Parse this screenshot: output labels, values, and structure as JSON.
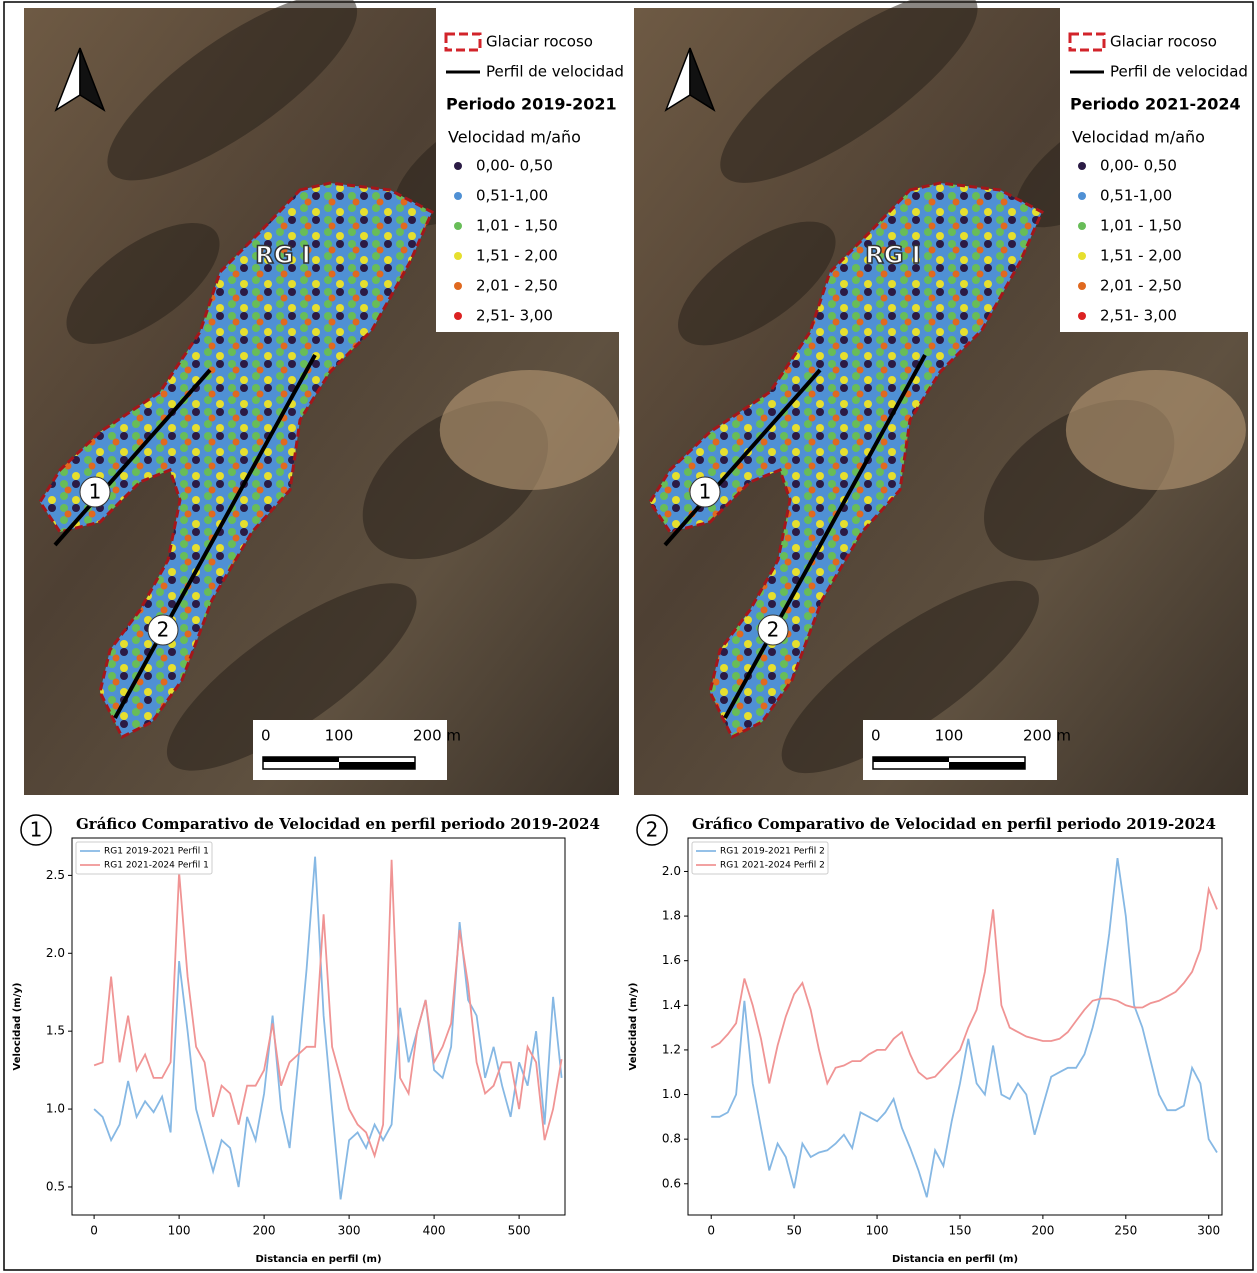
{
  "maps": [
    {
      "legend": {
        "glacier": "Glaciar rocoso",
        "profile": "Perfil de velocidad",
        "period": "Periodo 2019-2021",
        "velocity_title": "Velocidad m/año",
        "classes": [
          {
            "label": "0,00- 0,50",
            "color": "#2b1b45"
          },
          {
            "label": "0,51-1,00",
            "color": "#4f90d4"
          },
          {
            "label": "1,01 - 1,50",
            "color": "#68bd58"
          },
          {
            "label": "1,51 - 2,00",
            "color": "#e6df2e"
          },
          {
            "label": "2,01 - 2,50",
            "color": "#e0691f"
          },
          {
            "label": "2,51- 3,00",
            "color": "#dc2222"
          }
        ]
      },
      "glacier_label": "RG I",
      "profile_labels": [
        "1",
        "2"
      ],
      "scale": [
        "0",
        "100",
        "200 m"
      ]
    },
    {
      "legend": {
        "glacier": "Glaciar rocoso",
        "profile": "Perfil de velocidad",
        "period": "Periodo 2021-2024",
        "velocity_title": "Velocidad m/año",
        "classes": [
          {
            "label": "0,00- 0,50",
            "color": "#2b1b45"
          },
          {
            "label": "0,51-1,00",
            "color": "#4f90d4"
          },
          {
            "label": "1,01 - 1,50",
            "color": "#68bd58"
          },
          {
            "label": "1,51 - 2,00",
            "color": "#e6df2e"
          },
          {
            "label": "2,01 - 2,50",
            "color": "#e0691f"
          },
          {
            "label": "2,51- 3,00",
            "color": "#dc2222"
          }
        ]
      },
      "glacier_label": "RG I",
      "profile_labels": [
        "1",
        "2"
      ],
      "scale": [
        "0",
        "100",
        "200 m"
      ]
    }
  ],
  "chart_data": [
    {
      "type": "line",
      "label": "1",
      "title": "Gráfico Comparativo de Velocidad en perfil periodo 2019-2024",
      "x_label": "Distancia en perfil (m)",
      "y_label": "Velocidad (m/y)",
      "legend": "upper left",
      "grid": false,
      "x": [
        0,
        10,
        20,
        30,
        40,
        50,
        60,
        70,
        80,
        90,
        100,
        110,
        120,
        130,
        140,
        150,
        160,
        170,
        180,
        190,
        200,
        210,
        220,
        230,
        240,
        250,
        260,
        270,
        280,
        290,
        300,
        310,
        320,
        330,
        340,
        350,
        360,
        370,
        380,
        390,
        400,
        410,
        420,
        430,
        440,
        450,
        460,
        470,
        480,
        490,
        500,
        510,
        520,
        530,
        540,
        550
      ],
      "series": [
        {
          "name": "RG1 2019-2021 Perfil 1",
          "color": "#86b8e4",
          "values": [
            1.0,
            0.95,
            0.8,
            0.9,
            1.18,
            0.95,
            1.05,
            0.98,
            1.08,
            0.85,
            1.95,
            1.5,
            1.0,
            0.8,
            0.6,
            0.8,
            0.75,
            0.5,
            0.95,
            0.8,
            1.1,
            1.6,
            1.0,
            0.75,
            1.3,
            1.9,
            2.62,
            1.6,
            1.0,
            0.42,
            0.8,
            0.85,
            0.75,
            0.9,
            0.8,
            0.9,
            1.65,
            1.3,
            1.5,
            1.7,
            1.25,
            1.2,
            1.4,
            2.2,
            1.7,
            1.6,
            1.2,
            1.4,
            1.15,
            0.95,
            1.3,
            1.15,
            1.5,
            0.9,
            1.72,
            1.2
          ]
        },
        {
          "name": "RG1 2021-2024 Perfil 1",
          "color": "#f09494",
          "values": [
            1.28,
            1.3,
            1.85,
            1.3,
            1.6,
            1.25,
            1.35,
            1.2,
            1.2,
            1.3,
            2.52,
            1.85,
            1.4,
            1.3,
            0.95,
            1.15,
            1.1,
            0.9,
            1.15,
            1.15,
            1.25,
            1.55,
            1.15,
            1.3,
            1.35,
            1.4,
            1.4,
            2.25,
            1.4,
            1.2,
            1.0,
            0.9,
            0.85,
            0.7,
            0.9,
            2.6,
            1.2,
            1.1,
            1.5,
            1.7,
            1.3,
            1.4,
            1.55,
            2.15,
            1.8,
            1.3,
            1.1,
            1.15,
            1.3,
            1.3,
            1.0,
            1.4,
            1.3,
            0.8,
            1.0,
            1.32
          ]
        }
      ],
      "xlim": [
        -26,
        554
      ],
      "xticks": [
        0,
        100,
        200,
        300,
        400,
        500
      ],
      "ylim": [
        0.32,
        2.74
      ],
      "yticks": [
        0.5,
        {
          "value": 1,
          "label": "1.0"
        },
        1.5,
        {
          "value": 2,
          "label": "2.0"
        },
        2.5
      ]
    },
    {
      "type": "line",
      "label": "2",
      "title": "Gráfico Comparativo de Velocidad en perfil periodo 2019-2024",
      "x_label": "Distancia en perfil (m)",
      "y_label": "Velocidad (m/y)",
      "legend": "upper left",
      "grid": false,
      "x": [
        0,
        5,
        10,
        15,
        20,
        25,
        30,
        35,
        40,
        45,
        50,
        55,
        60,
        65,
        70,
        75,
        80,
        85,
        90,
        95,
        100,
        105,
        110,
        115,
        120,
        125,
        130,
        135,
        140,
        145,
        150,
        155,
        160,
        165,
        170,
        175,
        180,
        185,
        190,
        195,
        200,
        205,
        210,
        215,
        220,
        225,
        230,
        235,
        240,
        245,
        250,
        255,
        260,
        265,
        270,
        275,
        280,
        285,
        290,
        295,
        300,
        305
      ],
      "series": [
        {
          "name": "RG1 2019-2021 Perfil 2",
          "color": "#86b8e4",
          "values": [
            0.9,
            0.9,
            0.92,
            1.0,
            1.42,
            1.05,
            0.85,
            0.66,
            0.78,
            0.72,
            0.58,
            0.78,
            0.72,
            0.74,
            0.75,
            0.78,
            0.82,
            0.76,
            0.92,
            0.9,
            0.88,
            0.92,
            0.98,
            0.85,
            0.76,
            0.66,
            0.54,
            0.75,
            0.68,
            0.88,
            1.05,
            1.25,
            1.05,
            1.0,
            1.22,
            1.0,
            0.98,
            1.05,
            1.0,
            0.82,
            0.95,
            1.08,
            1.1,
            1.12,
            1.12,
            1.18,
            1.3,
            1.45,
            1.72,
            2.06,
            1.8,
            1.4,
            1.3,
            1.15,
            1.0,
            0.93,
            0.93,
            0.95,
            1.12,
            1.05,
            0.8,
            0.74
          ]
        },
        {
          "name": "RG1 2021-2024 Perfil 2",
          "color": "#f09494",
          "values": [
            1.21,
            1.23,
            1.27,
            1.32,
            1.52,
            1.4,
            1.25,
            1.05,
            1.22,
            1.35,
            1.45,
            1.5,
            1.38,
            1.2,
            1.05,
            1.12,
            1.13,
            1.15,
            1.15,
            1.18,
            1.2,
            1.2,
            1.25,
            1.28,
            1.18,
            1.1,
            1.07,
            1.08,
            1.12,
            1.16,
            1.2,
            1.3,
            1.38,
            1.55,
            1.83,
            1.4,
            1.3,
            1.28,
            1.26,
            1.25,
            1.24,
            1.24,
            1.25,
            1.28,
            1.33,
            1.38,
            1.42,
            1.43,
            1.43,
            1.42,
            1.4,
            1.39,
            1.39,
            1.41,
            1.42,
            1.44,
            1.46,
            1.5,
            1.55,
            1.65,
            1.92,
            1.83
          ]
        }
      ],
      "xlim": [
        -14,
        308
      ],
      "xticks": [
        0,
        50,
        100,
        150,
        200,
        250,
        300
      ],
      "ylim": [
        0.46,
        2.15
      ],
      "yticks": [
        0.6,
        0.8,
        {
          "value": 1,
          "label": "1.0"
        },
        1.2,
        1.4,
        1.6,
        1.8,
        {
          "value": 2,
          "label": "2.0"
        }
      ]
    }
  ]
}
